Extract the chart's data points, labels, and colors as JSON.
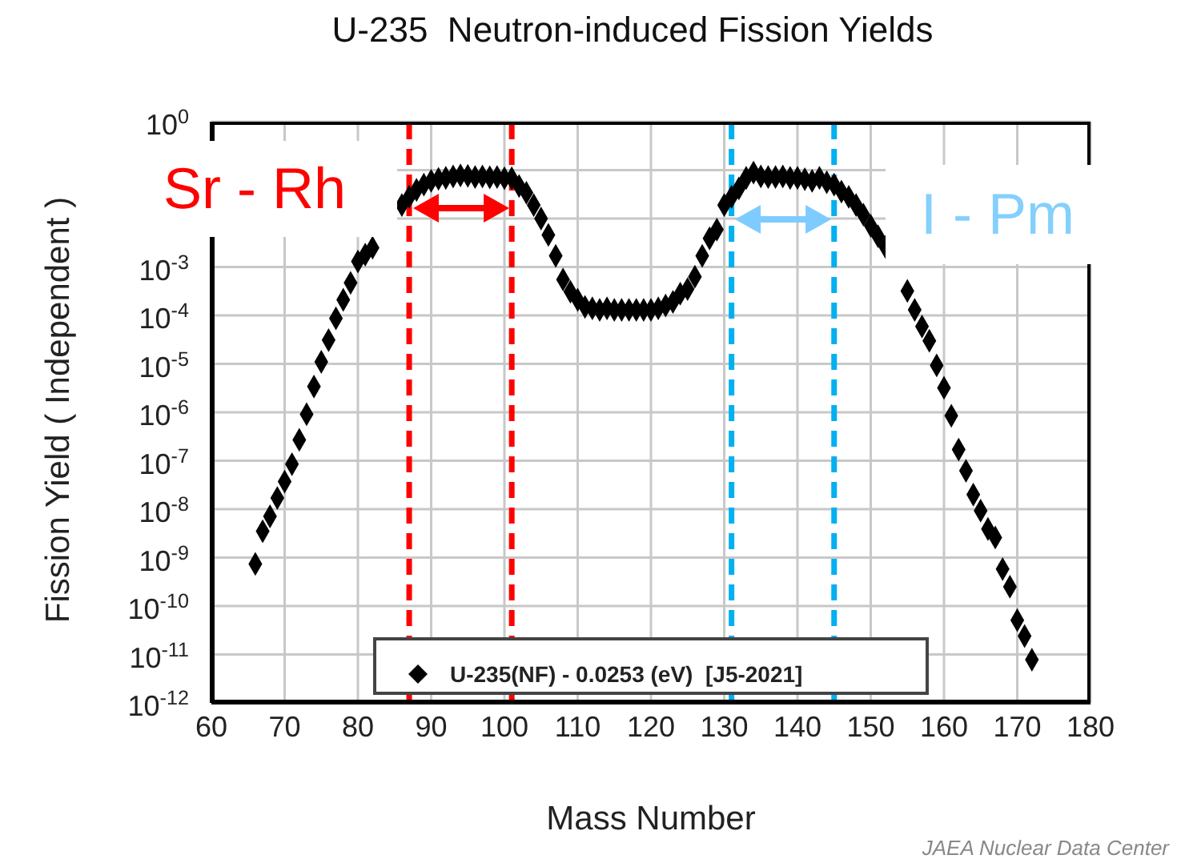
{
  "chart_data": {
    "type": "scatter",
    "title": "U-235  Neutron-induced Fission Yields",
    "xlabel": "Mass Number",
    "ylabel": "Fission Yield  ( Independent )",
    "x": [
      66,
      67,
      68,
      69,
      70,
      71,
      72,
      73,
      74,
      75,
      76,
      77,
      78,
      79,
      80,
      81,
      82,
      83,
      84,
      85,
      86,
      87,
      88,
      89,
      90,
      91,
      92,
      93,
      94,
      95,
      96,
      97,
      98,
      99,
      100,
      101,
      102,
      103,
      104,
      105,
      106,
      107,
      108,
      109,
      110,
      111,
      112,
      113,
      114,
      115,
      116,
      117,
      118,
      119,
      120,
      121,
      122,
      123,
      124,
      125,
      126,
      127,
      128,
      129,
      130,
      131,
      132,
      133,
      134,
      135,
      136,
      137,
      138,
      139,
      140,
      141,
      142,
      143,
      144,
      145,
      146,
      147,
      148,
      149,
      150,
      151,
      152,
      153,
      154,
      155,
      156,
      157,
      158,
      159,
      160,
      161,
      162,
      163,
      164,
      165,
      166,
      167,
      168,
      169,
      170,
      171,
      172
    ],
    "series": [
      {
        "name": "U-235(NF) - 0.0253 (eV)  [J5-2021]",
        "color": "#000000",
        "values": [
          7.4e-10,
          3.5e-09,
          7.1e-09,
          1.7e-08,
          3.7e-08,
          8.5e-08,
          2.7e-07,
          9.1e-07,
          3.4e-06,
          1.1e-05,
          3.1e-05,
          8.7e-05,
          0.00021,
          0.00047,
          0.0013,
          0.0018,
          0.0025,
          null,
          null,
          null,
          0.019,
          0.028,
          0.039,
          0.05,
          0.06,
          0.066,
          0.069,
          0.074,
          0.078,
          0.076,
          0.072,
          0.074,
          0.071,
          0.072,
          0.068,
          0.068,
          0.047,
          0.034,
          0.019,
          0.01,
          0.0046,
          0.0017,
          0.00055,
          0.00031,
          0.00021,
          0.00015,
          0.00014,
          0.00013,
          0.00014,
          0.00013,
          0.00013,
          0.00013,
          0.00013,
          0.00013,
          0.00013,
          0.00014,
          0.00016,
          0.00019,
          0.00028,
          0.00035,
          0.00063,
          0.0017,
          0.0039,
          0.0059,
          0.019,
          0.028,
          0.042,
          0.069,
          0.089,
          0.074,
          0.072,
          0.072,
          0.074,
          0.069,
          0.069,
          0.065,
          0.06,
          0.069,
          0.056,
          0.05,
          0.036,
          0.028,
          0.019,
          0.012,
          0.0071,
          0.0043,
          0.0026,
          null,
          null,
          0.00032,
          0.00013,
          5.9e-05,
          3e-05,
          9.3e-06,
          3.2e-06,
          8.5e-07,
          1.7e-07,
          6.2e-08,
          2e-08,
          9.3e-09,
          3.9e-09,
          2.6e-09,
          5.8e-10,
          2.5e-10,
          5.1e-11,
          2.4e-11,
          7.8e-12
        ]
      }
    ],
    "xlim": [
      60,
      180
    ],
    "xticks": [
      60,
      70,
      80,
      90,
      100,
      110,
      120,
      130,
      140,
      150,
      160,
      170,
      180
    ],
    "ylim": [
      1e-12,
      1
    ],
    "yticks": [
      {
        "value": 1,
        "label": "10$^{0}$"
      },
      {
        "value": 0.1,
        "label": null
      },
      {
        "value": 0.01,
        "label": null
      },
      {
        "value": 0.001,
        "label": "10$^{-3}$"
      },
      {
        "value": 0.0001,
        "label": "10$^{-4}$"
      },
      {
        "value": 1e-05,
        "label": "10$^{-5}$"
      },
      {
        "value": 1e-06,
        "label": "10$^{-6}$"
      },
      {
        "value": 1e-07,
        "label": "10$^{-7}$"
      },
      {
        "value": 1e-08,
        "label": "10$^{-8}$"
      },
      {
        "value": 1e-09,
        "label": "10$^{-9}$"
      },
      {
        "value": 1e-10,
        "label": "10$^{-10}$"
      },
      {
        "value": 1e-11,
        "label": "10$^{-11}$"
      },
      {
        "value": 1e-12,
        "label": "10$^{-12}$"
      }
    ],
    "log": "y",
    "grid": true,
    "marker": "diamond",
    "legend": "bottom",
    "ref_lines": [
      {
        "axis": "x",
        "value": 87,
        "color": "#ff0000",
        "line_style": "dashed"
      },
      {
        "axis": "x",
        "value": 101,
        "color": "#ff0000",
        "line_style": "dashed"
      },
      {
        "axis": "x",
        "value": 131,
        "color": "#00b0f0",
        "line_style": "dashed"
      },
      {
        "axis": "x",
        "value": 145,
        "color": "#00b0f0",
        "line_style": "dashed"
      }
    ],
    "annotations": [
      "Sr - Rh",
      "I - Pm",
      "JAEA Nuclear Data Center"
    ]
  }
}
